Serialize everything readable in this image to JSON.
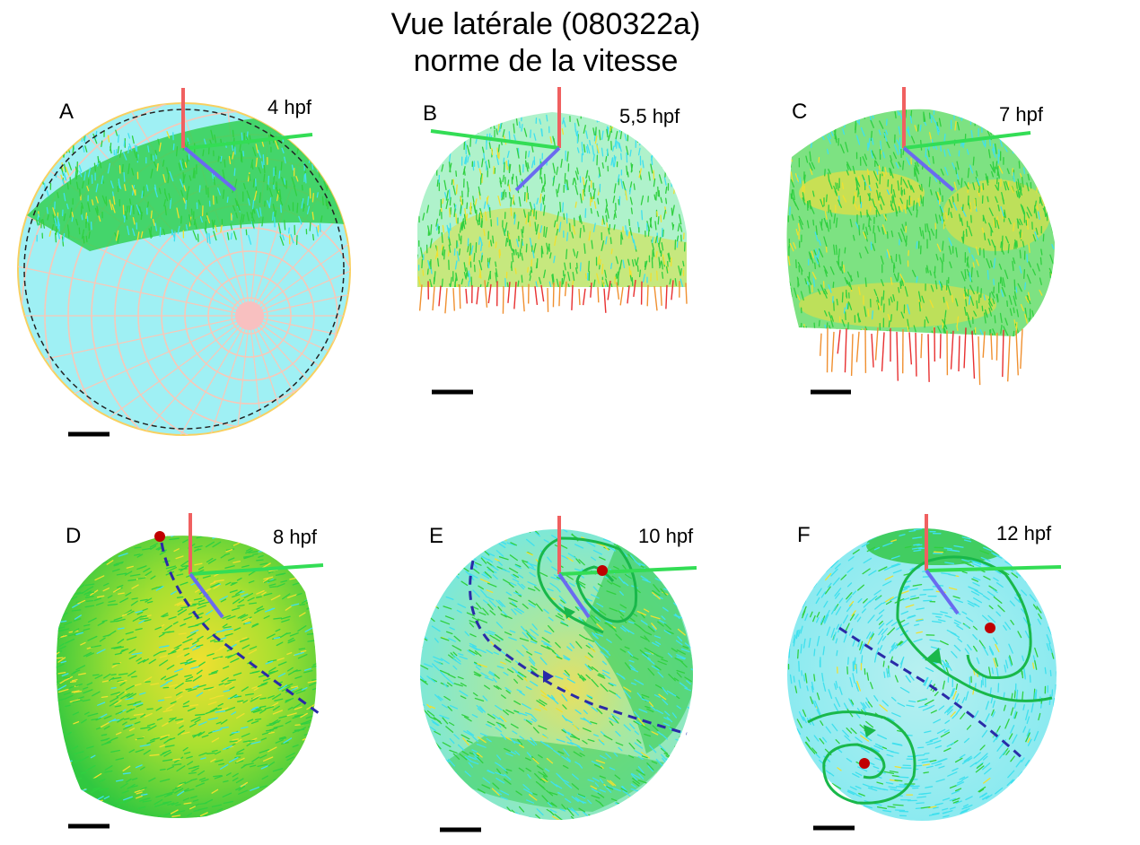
{
  "title": {
    "line1": "Vue latérale (080322a)",
    "line2": "norme de la vitesse"
  },
  "panels": [
    {
      "letter": "A",
      "time": "4 hpf"
    },
    {
      "letter": "B",
      "time": "5,5 hpf"
    },
    {
      "letter": "C",
      "time": "7 hpf"
    },
    {
      "letter": "D",
      "time": "8 hpf"
    },
    {
      "letter": "E",
      "time": "10 hpf"
    },
    {
      "letter": "F",
      "time": "12 hpf"
    }
  ],
  "colors": {
    "axis_vertical": "#f06060",
    "axis_horizontal": "#33dd55",
    "axis_diagonal": "#6a6af0",
    "vortex_path": "#19b84a",
    "separatrix": "#2a2aa8",
    "vortex_center": "#c00000",
    "scale_bar": "#000000",
    "speed_low": "#3fe0ee",
    "speed_mid": "#30d040",
    "speed_high": "#f0e030",
    "speed_max": "#e83030",
    "sphere_fill": "#9ff0f4",
    "mesh_lines": "#f8c0b8"
  }
}
